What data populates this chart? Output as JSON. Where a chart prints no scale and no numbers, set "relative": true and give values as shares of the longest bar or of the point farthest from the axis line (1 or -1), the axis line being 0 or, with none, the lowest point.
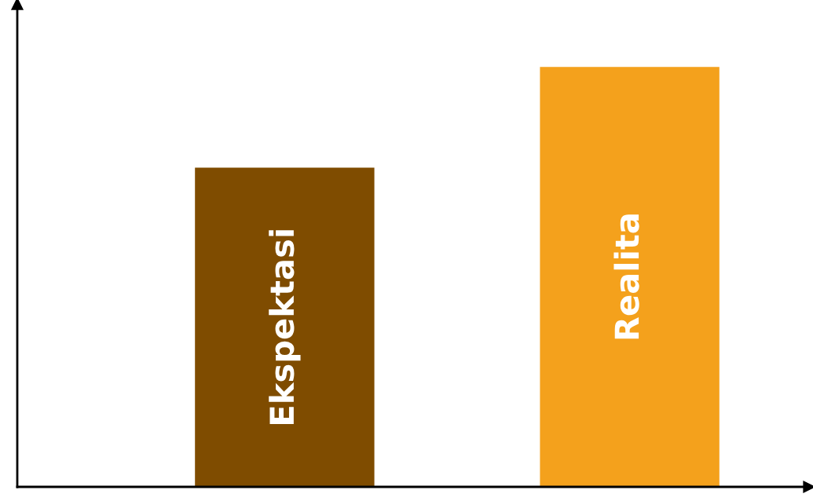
{
  "chart_data": {
    "type": "bar",
    "relative": true,
    "categories": [
      "Ekspektasi",
      "Realita"
    ],
    "values": [
      0.76,
      1
    ],
    "colors": [
      "#7f4c00",
      "#f4a11c"
    ]
  }
}
